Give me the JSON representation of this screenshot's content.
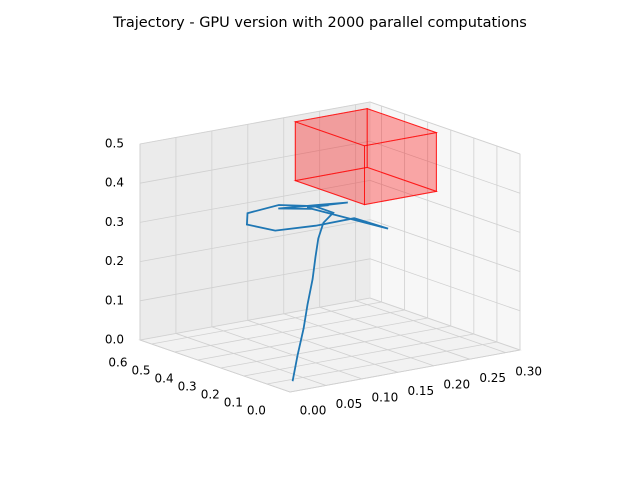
{
  "chart_data": {
    "type": "line3d",
    "title": "Trajectory - GPU version with 2000 parallel computations",
    "xlim": [
      0,
      0.32
    ],
    "ylim": [
      0,
      0.65
    ],
    "zlim": [
      0,
      0.5
    ],
    "xticks": [
      {
        "value": 0,
        "label": "0.00"
      },
      0.05,
      {
        "value": 0.1,
        "label": "0.10"
      },
      0.15,
      {
        "value": 0.2,
        "label": "0.20"
      },
      0.25,
      {
        "value": 0.3,
        "label": "0.30"
      }
    ],
    "yticks": [
      {
        "value": 0,
        "label": "0.0"
      },
      0.1,
      0.2,
      0.3,
      0.4,
      0.5,
      0.6
    ],
    "zticks": [
      {
        "value": 0,
        "label": "0.0"
      },
      0.1,
      0.2,
      0.3,
      0.4,
      0.5
    ],
    "grid": true,
    "series": [
      {
        "color": "#1f77b4",
        "x": [
          0.01,
          0.02,
          0.035,
          0.05,
          0.07,
          0.09,
          0.11,
          0.13,
          0.15,
          0.14,
          0.1,
          0.05,
          0.03,
          0.05,
          0.1,
          0.16,
          0.22,
          0.12,
          0.08,
          0.14,
          0.18,
          0.12,
          0.15
        ],
        "y": [
          0.02,
          0.03,
          0.05,
          0.08,
          0.12,
          0.17,
          0.22,
          0.26,
          0.28,
          0.33,
          0.36,
          0.34,
          0.28,
          0.22,
          0.2,
          0.22,
          0.26,
          0.28,
          0.3,
          0.3,
          0.31,
          0.3,
          0.3
        ],
        "z": [
          0.02,
          0.08,
          0.14,
          0.19,
          0.24,
          0.28,
          0.31,
          0.335,
          0.35,
          0.36,
          0.37,
          0.37,
          0.36,
          0.35,
          0.35,
          0.345,
          0.29,
          0.37,
          0.38,
          0.37,
          0.36,
          0.37,
          0.365
        ]
      }
    ],
    "obstacle": {
      "x": [
        0.2,
        0.3
      ],
      "y": [
        0.3,
        0.6
      ],
      "z": [
        0.35,
        0.5
      ],
      "color": "#ff0000"
    }
  }
}
